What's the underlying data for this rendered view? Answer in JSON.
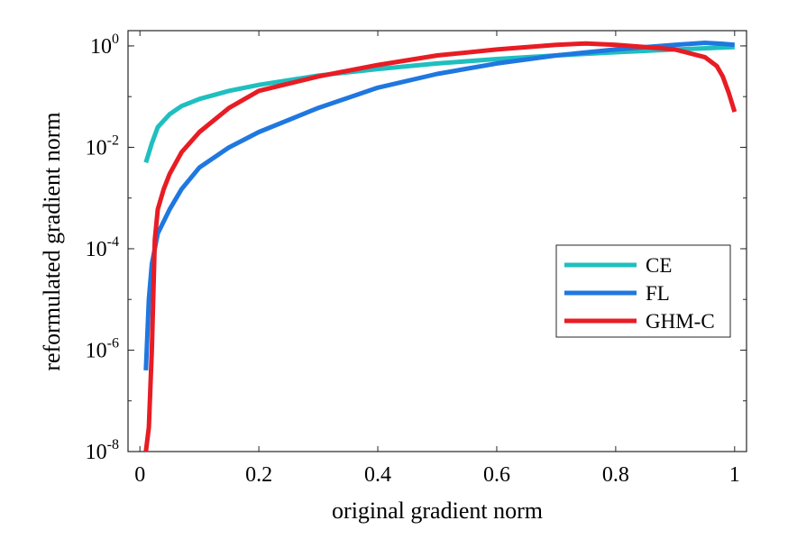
{
  "chart_data": {
    "type": "line",
    "title": "",
    "xlabel": "original gradient norm",
    "ylabel": "reformulated gradient norm",
    "xlim": [
      -0.02,
      1.02
    ],
    "ylim": [
      1e-08,
      2
    ],
    "yscale": "log",
    "grid": false,
    "legend_position": "right-middle",
    "x_ticks": [
      {
        "value": 0,
        "label": "0"
      },
      {
        "value": 0.2,
        "label": "0.2"
      },
      {
        "value": 0.4,
        "label": "0.4"
      },
      {
        "value": 0.6,
        "label": "0.6"
      },
      {
        "value": 0.8,
        "label": "0.8"
      },
      {
        "value": 1,
        "label": "1"
      }
    ],
    "y_ticks": [
      {
        "value": 1e-08,
        "base": "10",
        "exp": "-8"
      },
      {
        "value": 1e-06,
        "base": "10",
        "exp": "-6"
      },
      {
        "value": 0.0001,
        "base": "10",
        "exp": "-4"
      },
      {
        "value": 0.01,
        "base": "10",
        "exp": "-2"
      },
      {
        "value": 1,
        "base": "10",
        "exp": "0"
      }
    ],
    "series": [
      {
        "name": "CE",
        "color": "#1fbfbf",
        "x": [
          0.01,
          0.02,
          0.03,
          0.05,
          0.07,
          0.1,
          0.15,
          0.2,
          0.3,
          0.4,
          0.5,
          0.6,
          0.7,
          0.8,
          0.9,
          1.0
        ],
        "y": [
          0.005,
          0.012,
          0.025,
          0.045,
          0.065,
          0.09,
          0.13,
          0.17,
          0.26,
          0.35,
          0.45,
          0.55,
          0.65,
          0.75,
          0.85,
          0.95
        ]
      },
      {
        "name": "FL",
        "color": "#1f77e0",
        "x": [
          0.01,
          0.015,
          0.02,
          0.03,
          0.05,
          0.07,
          0.1,
          0.15,
          0.2,
          0.3,
          0.4,
          0.5,
          0.6,
          0.7,
          0.8,
          0.9,
          0.95,
          0.98,
          1.0
        ],
        "y": [
          4e-07,
          1e-05,
          5e-05,
          0.0002,
          0.0006,
          0.0015,
          0.004,
          0.01,
          0.02,
          0.06,
          0.15,
          0.28,
          0.45,
          0.65,
          0.85,
          1.05,
          1.15,
          1.1,
          1.05
        ]
      },
      {
        "name": "GHM-C",
        "color": "#e81c24",
        "x": [
          0.01,
          0.015,
          0.02,
          0.025,
          0.03,
          0.04,
          0.05,
          0.07,
          0.1,
          0.15,
          0.2,
          0.3,
          0.4,
          0.5,
          0.6,
          0.7,
          0.75,
          0.8,
          0.85,
          0.9,
          0.95,
          0.97,
          0.98,
          0.99,
          1.0
        ],
        "y": [
          1e-08,
          3e-08,
          1e-06,
          0.00015,
          0.0006,
          0.0015,
          0.003,
          0.008,
          0.02,
          0.06,
          0.13,
          0.25,
          0.42,
          0.65,
          0.85,
          1.05,
          1.12,
          1.05,
          0.95,
          0.85,
          0.6,
          0.4,
          0.25,
          0.12,
          0.05
        ]
      }
    ]
  }
}
